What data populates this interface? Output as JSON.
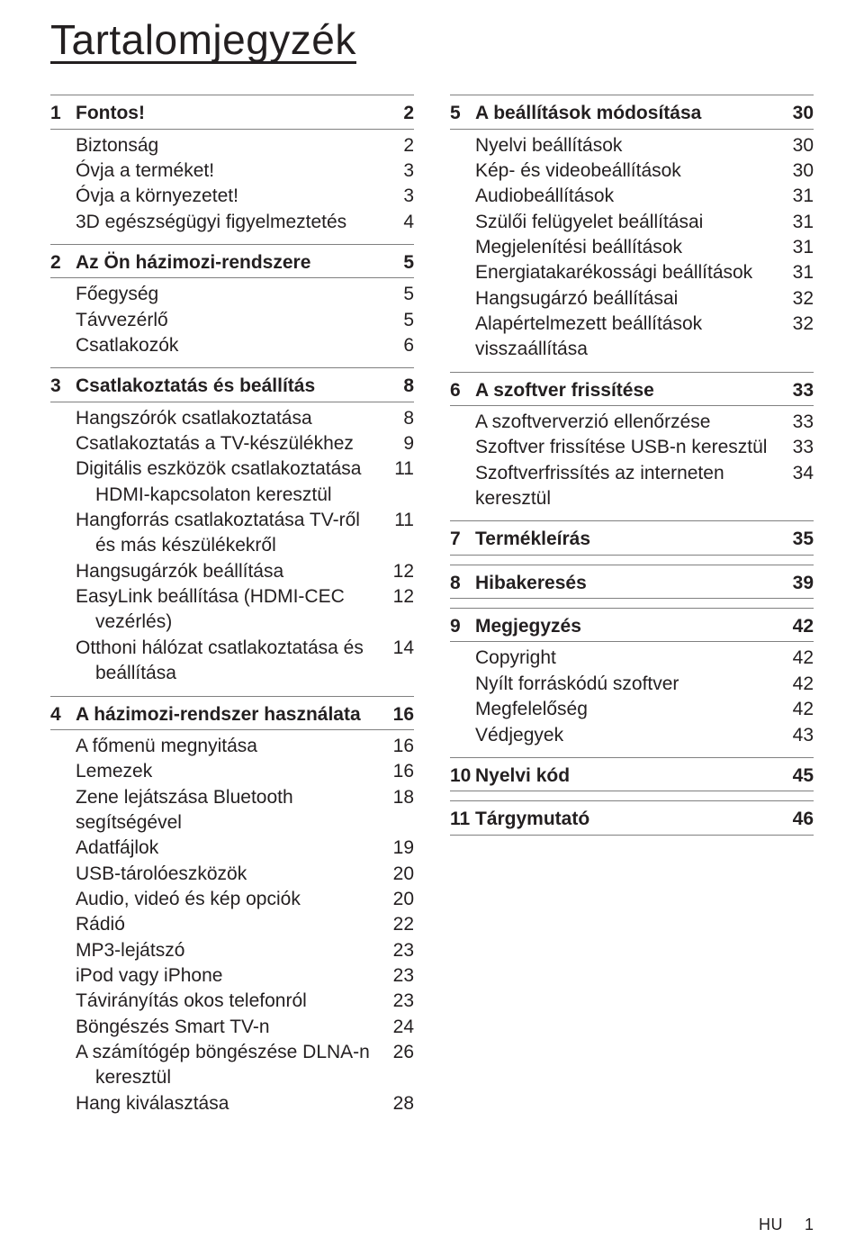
{
  "title": "Tartalomjegyzék",
  "footer": {
    "lang": "HU",
    "page": "1"
  },
  "left": [
    {
      "num": "1",
      "title": "Fontos!",
      "page": "2",
      "entries": [
        {
          "label": "Biztonság",
          "page": "2"
        },
        {
          "label": "Óvja a terméket!",
          "page": "3"
        },
        {
          "label": "Óvja a környezetet!",
          "page": "3"
        },
        {
          "label": "3D egészségügyi figyelmeztetés",
          "page": "4"
        }
      ]
    },
    {
      "num": "2",
      "title": "Az Ön házimozi-rendszere",
      "page": "5",
      "entries": [
        {
          "label": "Főegység",
          "page": "5"
        },
        {
          "label": "Távvezérlő",
          "page": "5"
        },
        {
          "label": "Csatlakozók",
          "page": "6"
        }
      ]
    },
    {
      "num": "3",
      "title": "Csatlakoztatás és beállítás",
      "page": "8",
      "entries": [
        {
          "label": "Hangszórók csatlakoztatása",
          "page": "8"
        },
        {
          "label": "Csatlakoztatás a TV-készülékhez",
          "page": "9"
        },
        {
          "label": "Digitális eszközök csatlakoztatása HDMI-kapcsolaton keresztül",
          "page": "11",
          "indent": true
        },
        {
          "label": "Hangforrás csatlakoztatása TV-ről és más készülékekről",
          "page": "11",
          "indent": true
        },
        {
          "label": "Hangsugárzók beállítása",
          "page": "12"
        },
        {
          "label": "EasyLink beállítása (HDMI-CEC vezérlés)",
          "page": "12",
          "indent": true
        },
        {
          "label": "Otthoni hálózat csatlakoztatása és beállítása",
          "page": "14",
          "indent": true
        }
      ]
    },
    {
      "num": "4",
      "title": "A házimozi-rendszer használata",
      "page": "16",
      "entries": [
        {
          "label": "A főmenü megnyitása",
          "page": "16"
        },
        {
          "label": "Lemezek",
          "page": "16"
        },
        {
          "label": "Zene lejátszása Bluetooth segítségével",
          "page": "18"
        },
        {
          "label": "Adatfájlok",
          "page": "19"
        },
        {
          "label": "USB-tárolóeszközök",
          "page": "20"
        },
        {
          "label": "Audio, videó és kép opciók",
          "page": "20"
        },
        {
          "label": "Rádió",
          "page": "22"
        },
        {
          "label": "MP3-lejátszó",
          "page": "23"
        },
        {
          "label": "iPod vagy iPhone",
          "page": "23"
        },
        {
          "label": "Távirányítás okos telefonról",
          "page": "23"
        },
        {
          "label": "Böngészés Smart TV-n",
          "page": "24"
        },
        {
          "label": "A számítógép böngészése DLNA-n keresztül",
          "page": "26",
          "indent": true
        },
        {
          "label": "Hang kiválasztása",
          "page": "28"
        }
      ]
    }
  ],
  "right": [
    {
      "num": "5",
      "title": "A beállítások módosítása",
      "page": "30",
      "entries": [
        {
          "label": "Nyelvi beállítások",
          "page": "30"
        },
        {
          "label": "Kép- és videobeállítások",
          "page": "30"
        },
        {
          "label": "Audiobeállítások",
          "page": "31"
        },
        {
          "label": "Szülői felügyelet beállításai",
          "page": "31"
        },
        {
          "label": "Megjelenítési beállítások",
          "page": "31"
        },
        {
          "label": "Energiatakarékossági beállítások",
          "page": "31"
        },
        {
          "label": "Hangsugárzó beállításai",
          "page": "32"
        },
        {
          "label": "Alapértelmezett beállítások visszaállítása",
          "page": "32"
        }
      ]
    },
    {
      "num": "6",
      "title": "A szoftver frissítése",
      "page": "33",
      "entries": [
        {
          "label": "A szoftververzió ellenőrzése",
          "page": "33"
        },
        {
          "label": "Szoftver frissítése USB-n keresztül",
          "page": "33"
        },
        {
          "label": "Szoftverfrissítés az interneten keresztül",
          "page": "34"
        }
      ]
    },
    {
      "num": "7",
      "title": "Termékleírás",
      "page": "35",
      "entries": []
    },
    {
      "num": "8",
      "title": "Hibakeresés",
      "page": "39",
      "entries": []
    },
    {
      "num": "9",
      "title": "Megjegyzés",
      "page": "42",
      "entries": [
        {
          "label": "Copyright",
          "page": "42"
        },
        {
          "label": "Nyílt forráskódú szoftver",
          "page": "42"
        },
        {
          "label": "Megfelelőség",
          "page": "42"
        },
        {
          "label": "Védjegyek",
          "page": "43"
        }
      ]
    },
    {
      "num": "10",
      "title": "Nyelvi kód",
      "page": "45",
      "entries": []
    },
    {
      "num": "11",
      "title": "Tárgymutató",
      "page": "46",
      "entries": []
    }
  ]
}
